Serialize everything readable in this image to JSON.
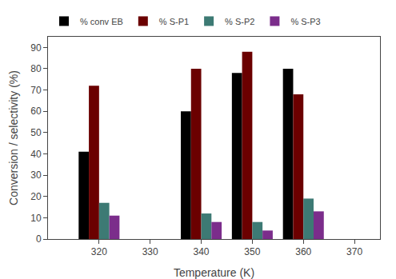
{
  "chart_data": {
    "type": "bar",
    "x": [
      320,
      340,
      350,
      360
    ],
    "series": [
      {
        "name": "% conv EB",
        "color": "#000000",
        "values": [
          41,
          60,
          78,
          80
        ]
      },
      {
        "name": "% S-P1",
        "color": "#6B0000",
        "values": [
          72,
          80,
          88,
          68
        ]
      },
      {
        "name": "% S-P2",
        "color": "#3D7A74",
        "values": [
          17,
          12,
          8,
          19
        ]
      },
      {
        "name": "% S-P3",
        "color": "#7B2D8B",
        "values": [
          11,
          8,
          4,
          13
        ]
      }
    ],
    "xlabel": "Temperature (K)",
    "ylabel": "Conversion / selectivity (%)",
    "xlim": [
      310,
      375
    ],
    "xticks": [
      320,
      330,
      340,
      350,
      360,
      370
    ],
    "ylim": [
      0,
      95
    ],
    "yticks": [
      0,
      10,
      20,
      30,
      40,
      50,
      60,
      70,
      80,
      90
    ],
    "legend": "upper left",
    "grid": false
  }
}
